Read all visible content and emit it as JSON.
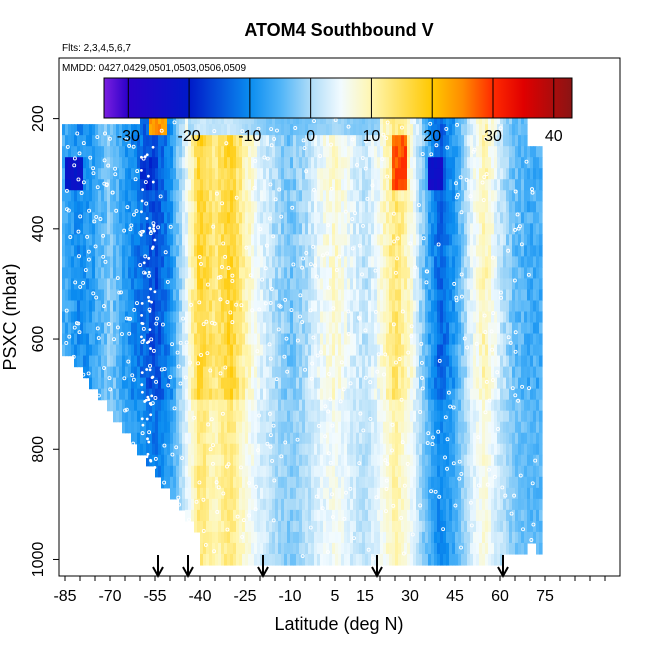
{
  "chart_data": {
    "type": "heatmap",
    "title": "ATOM4 Southbound V",
    "subtitle_flights": "Flts: 2,3,4,5,6,7",
    "subtitle_dates": "MMDD: 0427,0429,0501,0503,0506,0509",
    "xlabel": "Latitude (deg N)",
    "ylabel": "PSXC (mbar)",
    "xlim": [
      -87,
      100
    ],
    "ylim": [
      1030,
      90
    ],
    "y_reversed": true,
    "x_ticks": [
      -85,
      -70,
      -55,
      -40,
      -25,
      -10,
      5,
      15,
      30,
      45,
      60,
      75
    ],
    "x_minor_every": 5,
    "y_ticks": [
      200,
      400,
      600,
      800,
      1000
    ],
    "colorbar": {
      "min": -34,
      "max": 43,
      "ticks": [
        -30,
        -20,
        -10,
        0,
        10,
        20,
        30,
        40
      ],
      "stops": [
        {
          "v": -34,
          "c": "#7b1fe0"
        },
        {
          "v": -30,
          "c": "#2a00c8"
        },
        {
          "v": -20,
          "c": "#0019c8"
        },
        {
          "v": -10,
          "c": "#0a8cf0"
        },
        {
          "v": -5,
          "c": "#4fb4f8"
        },
        {
          "v": 0,
          "c": "#aedcf8"
        },
        {
          "v": 5,
          "c": "#f2fbff"
        },
        {
          "v": 10,
          "c": "#fff6b0"
        },
        {
          "v": 20,
          "c": "#ffc800"
        },
        {
          "v": 25,
          "c": "#ff8c00"
        },
        {
          "v": 30,
          "c": "#ff2a00"
        },
        {
          "v": 35,
          "c": "#e00000"
        },
        {
          "v": 43,
          "c": "#8a1414"
        }
      ]
    },
    "latitude_bands": [
      {
        "lat": -85,
        "v": -6
      },
      {
        "lat": -80,
        "v": -10
      },
      {
        "lat": -75,
        "v": -7
      },
      {
        "lat": -70,
        "v": -2
      },
      {
        "lat": -65,
        "v": -8
      },
      {
        "lat": -60,
        "v": -12
      },
      {
        "lat": -55,
        "v": -16
      },
      {
        "lat": -50,
        "v": -10
      },
      {
        "lat": -45,
        "v": 3
      },
      {
        "lat": -40,
        "v": 18
      },
      {
        "lat": -35,
        "v": 12
      },
      {
        "lat": -30,
        "v": 18
      },
      {
        "lat": -25,
        "v": 10
      },
      {
        "lat": -20,
        "v": 4
      },
      {
        "lat": -15,
        "v": 0
      },
      {
        "lat": -10,
        "v": -3
      },
      {
        "lat": -5,
        "v": 0
      },
      {
        "lat": 0,
        "v": 5
      },
      {
        "lat": 5,
        "v": 8
      },
      {
        "lat": 10,
        "v": 4
      },
      {
        "lat": 15,
        "v": 1
      },
      {
        "lat": 20,
        "v": 6
      },
      {
        "lat": 25,
        "v": 14
      },
      {
        "lat": 30,
        "v": 8
      },
      {
        "lat": 35,
        "v": -4
      },
      {
        "lat": 40,
        "v": -14
      },
      {
        "lat": 45,
        "v": -8
      },
      {
        "lat": 50,
        "v": 3
      },
      {
        "lat": 55,
        "v": 10
      },
      {
        "lat": 60,
        "v": 2
      },
      {
        "lat": 65,
        "v": -4
      },
      {
        "lat": 70,
        "v": -6
      }
    ],
    "top_features": [
      {
        "lat_from": -57,
        "lat_to": -52,
        "p_from": 190,
        "p_to": 235,
        "v": 24
      },
      {
        "lat_from": 24,
        "lat_to": 28,
        "p_from": 235,
        "p_to": 330,
        "v": 28
      },
      {
        "lat_from": 36,
        "lat_to": 40,
        "p_from": 265,
        "p_to": 330,
        "v": -24
      },
      {
        "lat_from": -85,
        "lat_to": -80,
        "p_from": 265,
        "p_to": 320,
        "v": -22
      },
      {
        "lat_from": -60,
        "lat_to": -57,
        "p_from": 270,
        "p_to": 330,
        "v": -18
      }
    ],
    "arrow_latitudes": [
      -54,
      -44,
      -19,
      19,
      61
    ],
    "arrow_label": "↓"
  }
}
